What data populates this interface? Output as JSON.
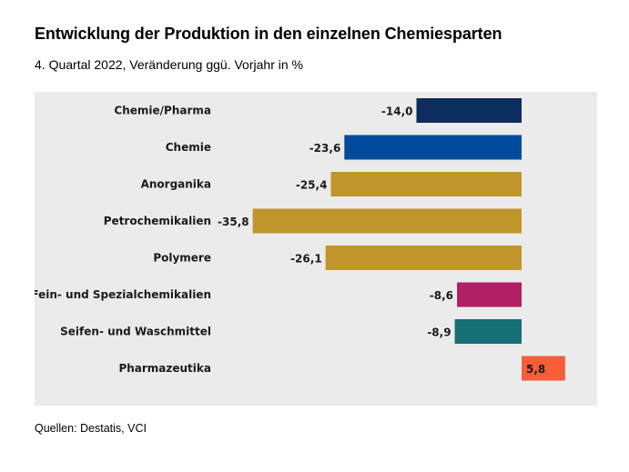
{
  "header": {
    "title": "Entwicklung der Produktion in den einzelnen Chemiesparten",
    "subtitle": "4. Quartal 2022, Veränderung ggü. Vorjahr in %"
  },
  "footer": {
    "source": "Quellen: Destatis, VCI"
  },
  "chart_data": {
    "type": "bar",
    "orientation": "horizontal",
    "title": "Entwicklung der Produktion in den einzelnen Chemiesparten",
    "subtitle": "4. Quartal 2022, Veränderung ggü. Vorjahr in %",
    "xlabel": "",
    "ylabel": "",
    "grid": false,
    "legend": "none",
    "xlim": [
      -40,
      10
    ],
    "categories": [
      "Chemie/Pharma",
      "Chemie",
      "Anorganika",
      "Petrochemikalien",
      "Polymere",
      "Fein- und Spezialchemikalien",
      "Seifen- und Waschmittel",
      "Pharmazeutika"
    ],
    "values": [
      -14.0,
      -23.6,
      -25.4,
      -35.8,
      -26.1,
      -8.6,
      -8.9,
      5.8
    ],
    "value_labels": [
      "-14,0",
      "-23,6",
      "-25,4",
      "-35,8",
      "-26,1",
      "-8,6",
      "-8,9",
      "5,8"
    ],
    "colors": [
      "#0d2d5e",
      "#004b9b",
      "#c0962b",
      "#c0962b",
      "#c0962b",
      "#b01f62",
      "#177076",
      "#f55e38"
    ]
  }
}
